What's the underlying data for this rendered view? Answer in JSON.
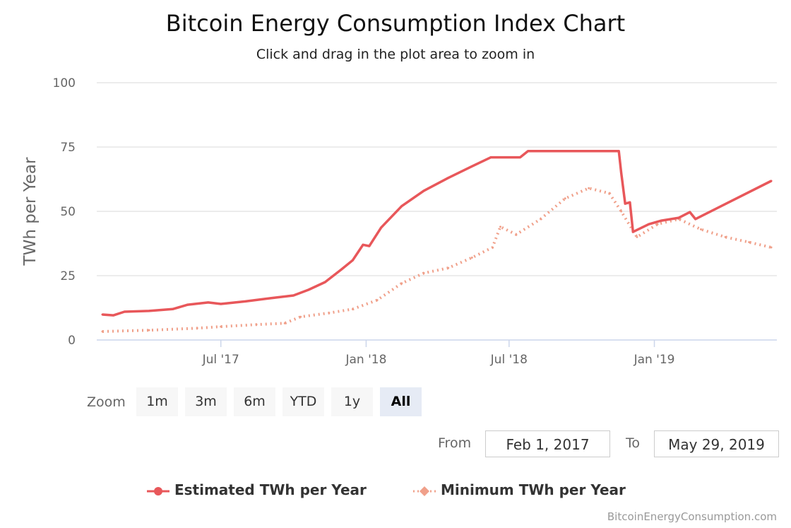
{
  "chart_data": {
    "type": "line",
    "title": "Bitcoin Energy Consumption Index Chart",
    "subtitle": "Click and drag in the plot area to zoom in",
    "ylabel": "TWh per Year",
    "xlabel": "",
    "ylim": [
      0,
      100
    ],
    "yticks": [
      "0",
      "25",
      "50",
      "75",
      "100"
    ],
    "xticks": [
      {
        "label": "Jul '17",
        "date": "2017-07-01"
      },
      {
        "label": "Jan '18",
        "date": "2018-01-01"
      },
      {
        "label": "Jul '18",
        "date": "2018-07-01"
      },
      {
        "label": "Jan '19",
        "date": "2019-01-01"
      }
    ],
    "xlim": [
      "2017-02-01",
      "2019-05-29"
    ],
    "grid": true,
    "legend_position": "bottom",
    "series": [
      {
        "name": "Estimated TWh per Year",
        "color": "#e8575a",
        "style": "solid",
        "points": [
          [
            "2017-02-01",
            9.9
          ],
          [
            "2017-02-15",
            9.6
          ],
          [
            "2017-03-01",
            11
          ],
          [
            "2017-04-01",
            11.3
          ],
          [
            "2017-05-01",
            12
          ],
          [
            "2017-05-20",
            13.7
          ],
          [
            "2017-06-15",
            14.6
          ],
          [
            "2017-07-01",
            14
          ],
          [
            "2017-08-01",
            15
          ],
          [
            "2017-09-01",
            16.2
          ],
          [
            "2017-10-01",
            17.3
          ],
          [
            "2017-10-20",
            19.5
          ],
          [
            "2017-11-10",
            22.5
          ],
          [
            "2017-12-01",
            27.5
          ],
          [
            "2017-12-15",
            31
          ],
          [
            "2017-12-28",
            37
          ],
          [
            "2018-01-05",
            36.5
          ],
          [
            "2018-01-20",
            43.7
          ],
          [
            "2018-02-15",
            52
          ],
          [
            "2018-03-15",
            58
          ],
          [
            "2018-04-15",
            63
          ],
          [
            "2018-05-15",
            67.5
          ],
          [
            "2018-06-08",
            71
          ],
          [
            "2018-07-15",
            71
          ],
          [
            "2018-07-25",
            73.4
          ],
          [
            "2018-11-17",
            73.4
          ],
          [
            "2018-11-20",
            65
          ],
          [
            "2018-11-25",
            53
          ],
          [
            "2018-12-01",
            53.5
          ],
          [
            "2018-12-05",
            42
          ],
          [
            "2018-12-25",
            45
          ],
          [
            "2019-01-10",
            46.4
          ],
          [
            "2019-02-01",
            47.5
          ],
          [
            "2019-02-15",
            49.7
          ],
          [
            "2019-02-22",
            47
          ],
          [
            "2019-05-29",
            61.8
          ]
        ]
      },
      {
        "name": "Minimum TWh per Year",
        "color": "#f0a08a",
        "style": "dotted",
        "points": [
          [
            "2017-02-01",
            3.3
          ],
          [
            "2017-04-01",
            3.8
          ],
          [
            "2017-06-01",
            4.6
          ],
          [
            "2017-07-01",
            5.2
          ],
          [
            "2017-08-15",
            6
          ],
          [
            "2017-09-20",
            6.5
          ],
          [
            "2017-10-10",
            9
          ],
          [
            "2017-11-15",
            10.5
          ],
          [
            "2017-12-15",
            12
          ],
          [
            "2018-01-15",
            15.5
          ],
          [
            "2018-02-15",
            22
          ],
          [
            "2018-03-15",
            26
          ],
          [
            "2018-04-15",
            28
          ],
          [
            "2018-05-15",
            32
          ],
          [
            "2018-06-10",
            36
          ],
          [
            "2018-06-20",
            44
          ],
          [
            "2018-07-10",
            41
          ],
          [
            "2018-08-10",
            47
          ],
          [
            "2018-09-10",
            55
          ],
          [
            "2018-10-10",
            59
          ],
          [
            "2018-11-05",
            57
          ],
          [
            "2018-11-20",
            50
          ],
          [
            "2018-12-10",
            40
          ],
          [
            "2019-01-05",
            45
          ],
          [
            "2019-02-01",
            47
          ],
          [
            "2019-03-01",
            43
          ],
          [
            "2019-04-01",
            40
          ],
          [
            "2019-05-01",
            38
          ],
          [
            "2019-05-29",
            36
          ]
        ]
      }
    ]
  },
  "zoom": {
    "label": "Zoom",
    "buttons": [
      "1m",
      "3m",
      "6m",
      "YTD",
      "1y",
      "All"
    ],
    "selected": "All"
  },
  "range": {
    "from_label": "From",
    "from_value": "Feb 1, 2017",
    "to_label": "To",
    "to_value": "May 29, 2019"
  },
  "credits": "BitcoinEnergyConsumption.com"
}
